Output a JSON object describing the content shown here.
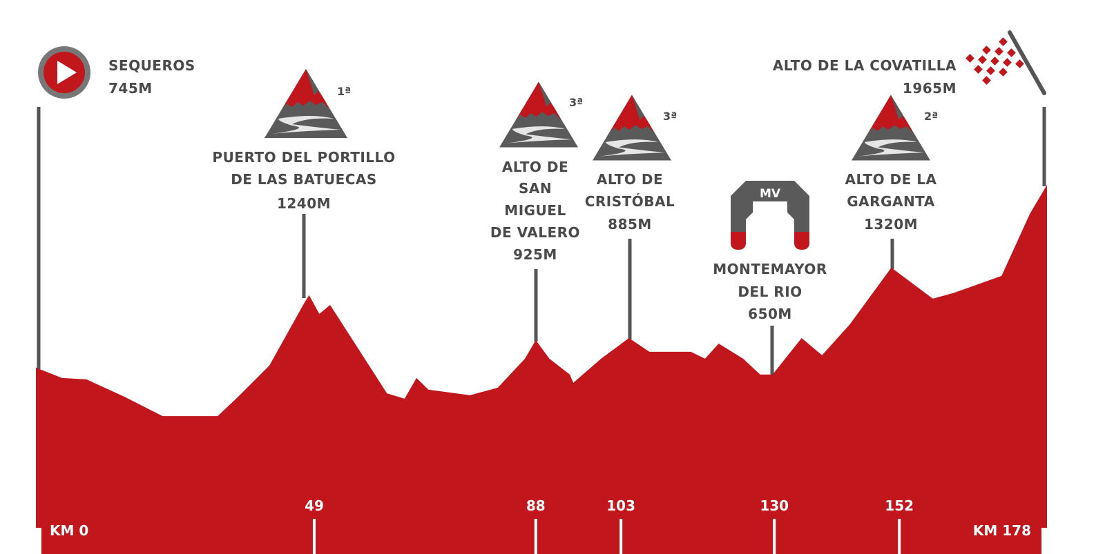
{
  "chart_data": {
    "type": "area",
    "title": "",
    "xlabel": "",
    "ylabel": "",
    "x_unit": "km",
    "y_unit": "m",
    "xlim": [
      0,
      178
    ],
    "ylim": [
      -324,
      3200
    ],
    "grid": false,
    "colors": {
      "profile": "#c0161c",
      "text": "#4a4a4a",
      "marker_line": "#555555",
      "icon_gray": "#5a5a5a"
    },
    "profile": [
      [
        0,
        745
      ],
      [
        4.6,
        676
      ],
      [
        8.9,
        667
      ],
      [
        15.6,
        551
      ],
      [
        22.3,
        422
      ],
      [
        32,
        422
      ],
      [
        35.6,
        551
      ],
      [
        41.1,
        759
      ],
      [
        47.2,
        1174
      ],
      [
        48.1,
        1229
      ],
      [
        49.9,
        1104
      ],
      [
        51.8,
        1164
      ],
      [
        61.8,
        574
      ],
      [
        64.9,
        538
      ],
      [
        67,
        676
      ],
      [
        69.1,
        598
      ],
      [
        76.4,
        561
      ],
      [
        81.3,
        611
      ],
      [
        86.1,
        805
      ],
      [
        88,
        929
      ],
      [
        90.4,
        805
      ],
      [
        94,
        699
      ],
      [
        94.6,
        644
      ],
      [
        99.5,
        805
      ],
      [
        104.4,
        943
      ],
      [
        108,
        851
      ],
      [
        115.3,
        851
      ],
      [
        117.8,
        805
      ],
      [
        120.2,
        906
      ],
      [
        124.5,
        805
      ],
      [
        127.5,
        699
      ],
      [
        129.7,
        699
      ],
      [
        134.8,
        943
      ],
      [
        138.4,
        828
      ],
      [
        143.3,
        1035
      ],
      [
        150.6,
        1413
      ],
      [
        157.9,
        1206
      ],
      [
        161.5,
        1243
      ],
      [
        170,
        1358
      ],
      [
        175,
        1773
      ],
      [
        178,
        1966
      ]
    ],
    "km_ticks": [
      {
        "label": "KM 0",
        "km": 0
      },
      {
        "label": "49",
        "km": 49
      },
      {
        "label": "88",
        "km": 88
      },
      {
        "label": "103",
        "km": 103
      },
      {
        "label": "130",
        "km": 130
      },
      {
        "label": "152",
        "km": 152
      },
      {
        "label": "KM 178",
        "km": 178
      }
    ]
  },
  "markers": {
    "start": {
      "name": "SEQUEROS",
      "altitude": "745M",
      "icon": "play-start-icon"
    },
    "puerto": {
      "name_lines": [
        "PUERTO DEL PORTILLO",
        "DE LAS BATUECAS"
      ],
      "altitude": "1240M",
      "category": "1ª",
      "icon": "mountain-icon"
    },
    "san_miguel": {
      "name_lines": [
        "ALTO DE",
        "SAN",
        "MIGUEL",
        "DE VALERO"
      ],
      "altitude": "925M",
      "category": "3ª",
      "icon": "mountain-icon"
    },
    "cristobal": {
      "name_lines": [
        "ALTO DE",
        "CRISTÓBAL"
      ],
      "altitude": "885M",
      "category": "3ª",
      "icon": "mountain-icon"
    },
    "montemayor": {
      "name_lines": [
        "MONTEMAYOR",
        "DEL RIO"
      ],
      "altitude": "650M",
      "badge": "MV",
      "icon": "sprint-arch-icon"
    },
    "garganta": {
      "name_lines": [
        "ALTO DE LA",
        "GARGANTA"
      ],
      "altitude": "1320M",
      "category": "2ª",
      "icon": "mountain-icon"
    },
    "finish": {
      "name": "ALTO DE LA COVATILLA",
      "altitude": "1965M",
      "icon": "checkered-flag-icon"
    }
  }
}
